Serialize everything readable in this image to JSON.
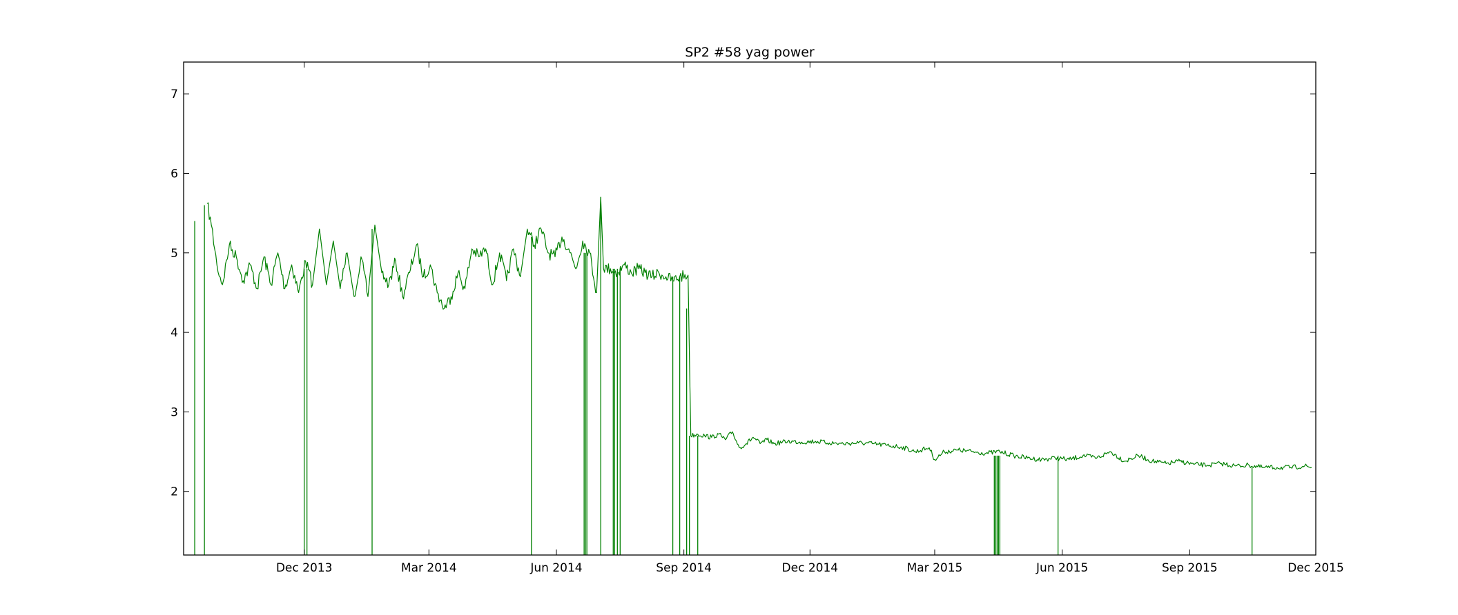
{
  "chart_data": {
    "type": "line",
    "title": "SP2 #58 yag power",
    "xlabel": "",
    "ylabel": "",
    "xlim": [
      "2013-09-05",
      "2015-12-01"
    ],
    "ylim": [
      1.2,
      7.4
    ],
    "x_ticks": [
      {
        "date": "2013-12-01",
        "label": "Dec 2013"
      },
      {
        "date": "2014-03-01",
        "label": "Mar 2014"
      },
      {
        "date": "2014-06-01",
        "label": "Jun 2014"
      },
      {
        "date": "2014-09-01",
        "label": "Sep 2014"
      },
      {
        "date": "2014-12-01",
        "label": "Dec 2014"
      },
      {
        "date": "2015-03-01",
        "label": "Mar 2015"
      },
      {
        "date": "2015-06-01",
        "label": "Jun 2015"
      },
      {
        "date": "2015-09-01",
        "label": "Sep 2015"
      },
      {
        "date": "2015-12-01",
        "label": "Dec 2015"
      }
    ],
    "y_ticks": [
      {
        "value": 2,
        "label": "2"
      },
      {
        "value": 3,
        "label": "3"
      },
      {
        "value": 4,
        "label": "4"
      },
      {
        "value": 5,
        "label": "5"
      },
      {
        "value": 6,
        "label": "6"
      },
      {
        "value": 7,
        "label": "7"
      }
    ],
    "grid": false,
    "series": [
      {
        "color": "#008000",
        "points": [
          [
            "2013-09-22",
            5.62
          ],
          [
            "2013-09-25",
            5.35
          ],
          [
            "2013-09-29",
            4.85
          ],
          [
            "2013-10-03",
            4.6
          ],
          [
            "2013-10-08",
            5.1
          ],
          [
            "2013-10-13",
            4.95
          ],
          [
            "2013-10-18",
            4.65
          ],
          [
            "2013-10-23",
            4.85
          ],
          [
            "2013-10-28",
            4.55
          ],
          [
            "2013-11-02",
            4.95
          ],
          [
            "2013-11-07",
            4.6
          ],
          [
            "2013-11-12",
            5.0
          ],
          [
            "2013-11-17",
            4.55
          ],
          [
            "2013-11-22",
            4.85
          ],
          [
            "2013-11-27",
            4.5
          ],
          [
            "2013-12-02",
            4.9
          ],
          [
            "2013-12-07",
            4.6
          ],
          [
            "2013-12-12",
            5.3
          ],
          [
            "2013-12-17",
            4.6
          ],
          [
            "2013-12-22",
            5.15
          ],
          [
            "2013-12-27",
            4.55
          ],
          [
            "2014-01-01",
            5.0
          ],
          [
            "2014-01-06",
            4.45
          ],
          [
            "2014-01-11",
            4.95
          ],
          [
            "2014-01-16",
            4.45
          ],
          [
            "2014-01-21",
            5.35
          ],
          [
            "2014-01-26",
            4.75
          ],
          [
            "2014-01-31",
            4.6
          ],
          [
            "2014-02-05",
            4.9
          ],
          [
            "2014-02-10",
            4.45
          ],
          [
            "2014-02-15",
            4.75
          ],
          [
            "2014-02-20",
            5.1
          ],
          [
            "2014-02-25",
            4.7
          ],
          [
            "2014-03-02",
            4.85
          ],
          [
            "2014-03-07",
            4.5
          ],
          [
            "2014-03-12",
            4.3
          ],
          [
            "2014-03-17",
            4.45
          ],
          [
            "2014-03-22",
            4.75
          ],
          [
            "2014-03-27",
            4.55
          ],
          [
            "2014-04-01",
            5.05
          ],
          [
            "2014-04-06",
            4.95
          ],
          [
            "2014-04-11",
            5.05
          ],
          [
            "2014-04-16",
            4.6
          ],
          [
            "2014-04-21",
            5.0
          ],
          [
            "2014-04-26",
            4.65
          ],
          [
            "2014-05-01",
            5.05
          ],
          [
            "2014-05-06",
            4.7
          ],
          [
            "2014-05-11",
            5.3
          ],
          [
            "2014-05-16",
            5.1
          ],
          [
            "2014-05-21",
            5.3
          ],
          [
            "2014-05-26",
            5.0
          ],
          [
            "2014-05-31",
            4.95
          ],
          [
            "2014-06-05",
            5.2
          ],
          [
            "2014-06-10",
            5.05
          ],
          [
            "2014-06-15",
            4.8
          ],
          [
            "2014-06-20",
            5.15
          ],
          [
            "2014-06-25",
            5.0
          ],
          [
            "2014-06-30",
            4.5
          ],
          [
            "2014-07-03",
            5.7
          ],
          [
            "2014-07-05",
            4.8
          ],
          [
            "2014-07-10",
            4.8
          ],
          [
            "2014-07-15",
            4.75
          ],
          [
            "2014-07-20",
            4.85
          ],
          [
            "2014-07-25",
            4.75
          ],
          [
            "2014-07-30",
            4.8
          ],
          [
            "2014-08-04",
            4.75
          ],
          [
            "2014-08-09",
            4.7
          ],
          [
            "2014-08-14",
            4.75
          ],
          [
            "2014-08-19",
            4.7
          ],
          [
            "2014-08-24",
            4.65
          ],
          [
            "2014-08-29",
            4.7
          ],
          [
            "2014-09-04",
            4.72
          ],
          [
            "2014-09-06",
            2.7
          ],
          [
            "2014-09-11",
            2.72
          ],
          [
            "2014-09-16",
            2.7
          ],
          [
            "2014-09-21",
            2.68
          ],
          [
            "2014-09-26",
            2.72
          ],
          [
            "2014-10-01",
            2.65
          ],
          [
            "2014-10-06",
            2.75
          ],
          [
            "2014-10-11",
            2.55
          ],
          [
            "2014-10-16",
            2.6
          ],
          [
            "2014-10-21",
            2.68
          ],
          [
            "2014-10-26",
            2.6
          ],
          [
            "2014-10-31",
            2.65
          ],
          [
            "2014-11-05",
            2.6
          ],
          [
            "2014-11-15",
            2.63
          ],
          [
            "2014-11-25",
            2.62
          ],
          [
            "2014-12-05",
            2.63
          ],
          [
            "2014-12-15",
            2.61
          ],
          [
            "2014-12-25",
            2.6
          ],
          [
            "2015-01-05",
            2.61
          ],
          [
            "2015-01-15",
            2.6
          ],
          [
            "2015-01-25",
            2.58
          ],
          [
            "2015-02-05",
            2.56
          ],
          [
            "2015-02-15",
            2.5
          ],
          [
            "2015-02-25",
            2.55
          ],
          [
            "2015-03-01",
            2.4
          ],
          [
            "2015-03-08",
            2.5
          ],
          [
            "2015-03-18",
            2.52
          ],
          [
            "2015-03-28",
            2.5
          ],
          [
            "2015-04-07",
            2.48
          ],
          [
            "2015-04-17",
            2.5
          ],
          [
            "2015-04-27",
            2.45
          ],
          [
            "2015-05-07",
            2.42
          ],
          [
            "2015-05-17",
            2.4
          ],
          [
            "2015-05-27",
            2.42
          ],
          [
            "2015-06-06",
            2.4
          ],
          [
            "2015-06-16",
            2.45
          ],
          [
            "2015-06-26",
            2.42
          ],
          [
            "2015-07-06",
            2.5
          ],
          [
            "2015-07-16",
            2.38
          ],
          [
            "2015-07-26",
            2.45
          ],
          [
            "2015-08-05",
            2.38
          ],
          [
            "2015-08-15",
            2.35
          ],
          [
            "2015-08-25",
            2.38
          ],
          [
            "2015-09-04",
            2.34
          ],
          [
            "2015-09-14",
            2.33
          ],
          [
            "2015-09-24",
            2.35
          ],
          [
            "2015-10-04",
            2.32
          ],
          [
            "2015-10-14",
            2.33
          ],
          [
            "2015-10-24",
            2.3
          ],
          [
            "2015-11-03",
            2.3
          ],
          [
            "2015-11-13",
            2.3
          ],
          [
            "2015-11-23",
            2.32
          ],
          [
            "2015-11-28",
            2.3
          ]
        ],
        "dropouts": [
          {
            "date": "2013-09-13",
            "top": 5.4
          },
          {
            "date": "2013-09-20",
            "top": 5.6
          },
          {
            "date": "2013-12-01",
            "top": 4.8
          },
          {
            "date": "2013-12-03",
            "top": 4.8
          },
          {
            "date": "2014-01-19",
            "top": 5.3
          },
          {
            "date": "2014-05-14",
            "top": 5.2
          },
          {
            "date": "2014-06-21",
            "top": 5.0
          },
          {
            "date": "2014-06-22",
            "top": 5.0
          },
          {
            "date": "2014-06-23",
            "top": 5.0
          },
          {
            "date": "2014-07-03",
            "top": 5.7
          },
          {
            "date": "2014-07-12",
            "top": 4.8
          },
          {
            "date": "2014-07-13",
            "top": 4.8
          },
          {
            "date": "2014-07-15",
            "top": 4.8
          },
          {
            "date": "2014-07-17",
            "top": 4.8
          },
          {
            "date": "2014-08-24",
            "top": 4.7
          },
          {
            "date": "2014-08-29",
            "top": 4.7
          },
          {
            "date": "2014-09-03",
            "top": 4.3
          },
          {
            "date": "2014-09-05",
            "top": 2.7
          },
          {
            "date": "2014-09-11",
            "top": 2.7
          },
          {
            "date": "2015-04-13",
            "top": 2.45
          },
          {
            "date": "2015-04-14",
            "top": 2.45
          },
          {
            "date": "2015-04-15",
            "top": 2.45
          },
          {
            "date": "2015-04-16",
            "top": 2.45
          },
          {
            "date": "2015-04-17",
            "top": 2.45
          },
          {
            "date": "2015-05-29",
            "top": 2.45
          },
          {
            "date": "2015-10-16",
            "top": 2.3
          }
        ]
      }
    ]
  }
}
